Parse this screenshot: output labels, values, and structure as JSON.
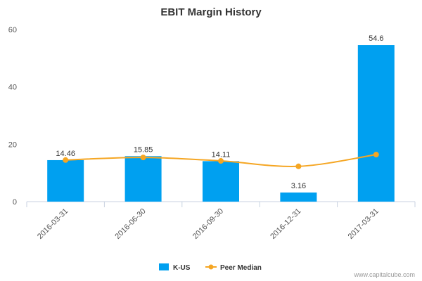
{
  "chart_data": {
    "type": "bar",
    "title": "EBIT Margin History",
    "categories": [
      "2016-03-31",
      "2016-06-30",
      "2016-09-30",
      "2016-12-31",
      "2017-03-31"
    ],
    "series": [
      {
        "name": "K-US",
        "type": "bar",
        "values": [
          14.46,
          15.85,
          14.11,
          3.16,
          54.6
        ],
        "data_labels": [
          "14.46",
          "15.85",
          "14.11",
          "3.16",
          "54.6"
        ]
      },
      {
        "name": "Peer Median",
        "type": "line",
        "values": [
          14.5,
          15.4,
          14.2,
          12.3,
          16.4
        ]
      }
    ],
    "ylim": [
      0,
      60
    ],
    "yticks": [
      "0",
      "20",
      "40",
      "60"
    ],
    "grid": false,
    "legend": "bottom-center"
  },
  "colors": {
    "bar": "#00a0f0",
    "line": "#f5a623"
  },
  "credit": "www.capitalcube.com"
}
